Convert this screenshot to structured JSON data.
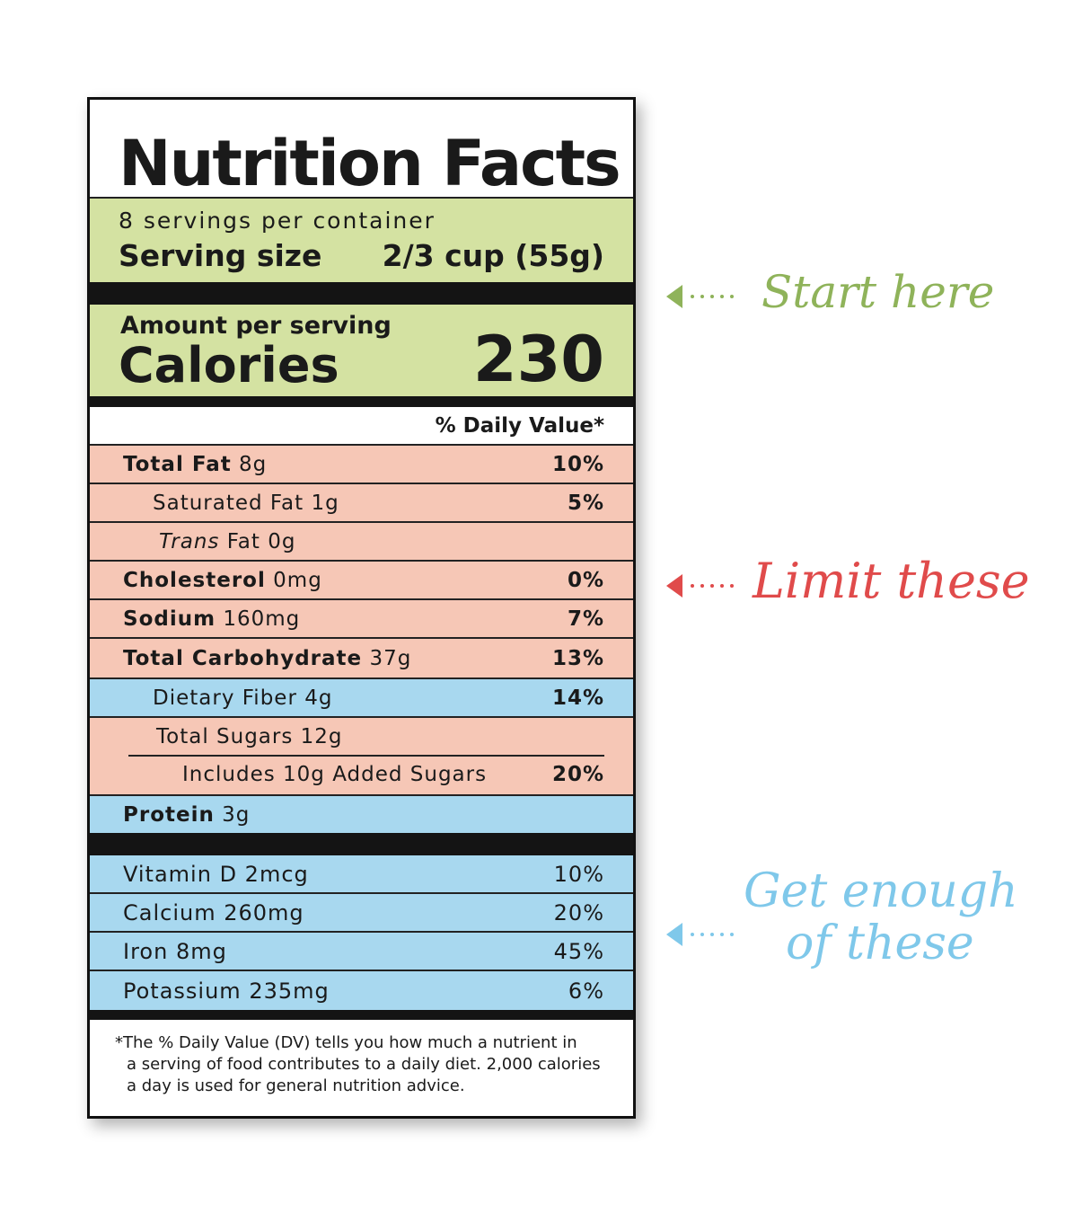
{
  "title": "Nutrition Facts",
  "servings": "8 servings per container",
  "serving_size": {
    "label": "Serving size",
    "value": "2/3 cup (55g)"
  },
  "calories": {
    "header": "Amount per serving",
    "label": "Calories",
    "value": "230"
  },
  "daily_value_header": "% Daily Value*",
  "nutrients": [
    {
      "name": "Total Fat",
      "amount": "8g",
      "dv": "10%"
    },
    {
      "name": "Saturated Fat",
      "amount": "1g",
      "dv": "5%"
    },
    {
      "name_italic": "Trans",
      "name": "Fat",
      "amount": "0g"
    },
    {
      "name": "Cholesterol",
      "amount": "0mg",
      "dv": "0%"
    },
    {
      "name": "Sodium",
      "amount": "160mg",
      "dv": "7%"
    },
    {
      "name": "Total Carbohydrate",
      "amount": "37g",
      "dv": "13%"
    },
    {
      "name": "Dietary Fiber",
      "amount": "4g",
      "dv": "14%"
    },
    {
      "name": "Total Sugars",
      "amount": "12g"
    },
    {
      "name": "Includes 10g Added Sugars",
      "dv": "20%"
    },
    {
      "name": "Protein",
      "amount": "3g"
    }
  ],
  "vitamins": [
    {
      "name": "Vitamin D 2mcg",
      "dv": "10%"
    },
    {
      "name": "Calcium 260mg",
      "dv": "20%"
    },
    {
      "name": "Iron 8mg",
      "dv": "45%"
    },
    {
      "name": "Potassium 235mg",
      "dv": "6%"
    }
  ],
  "footnote": [
    "*The % Daily Value (DV) tells you how much a nutrient in",
    "a serving of food contributes to a daily diet. 2,000 calories",
    "a day is used for general nutrition advice."
  ],
  "annotations": [
    "Start here",
    "Limit these",
    "Get enough",
    "of these"
  ]
}
